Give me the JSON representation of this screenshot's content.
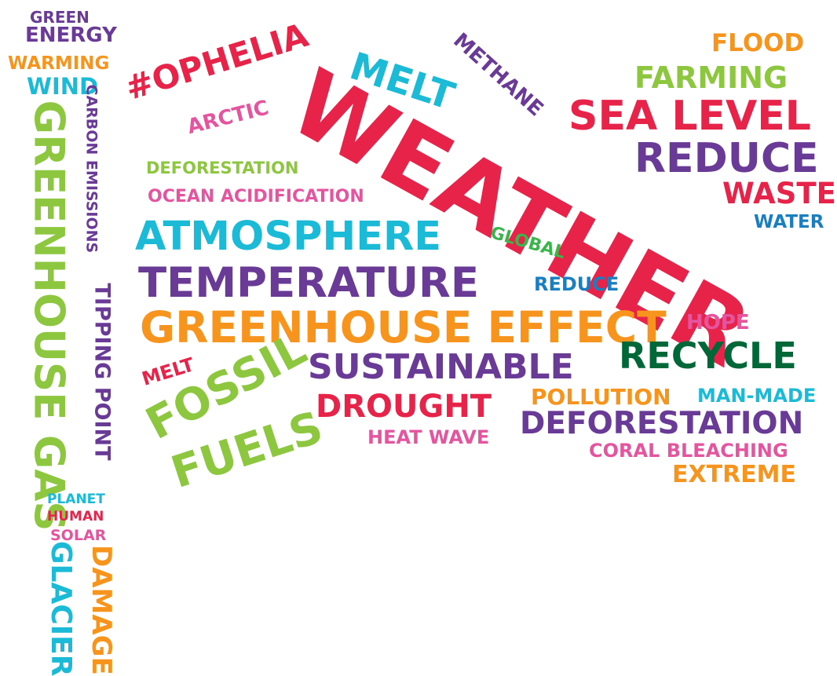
{
  "words": {
    "green": "GREEN",
    "energy": "ENERGY",
    "warming": "WARMING",
    "wind": "WIND",
    "carbon_emissions": "CARBON EMISSIONS",
    "greenhouse_gas": "GREENHOUSE GAS",
    "tipping_point": "TIPPING POINT",
    "planet": "PLANET",
    "human": "HUMAN",
    "solar": "SOLAR",
    "glacier": "GLACIER",
    "damage": "DAMAGE",
    "ophelia": "#OPHELIA",
    "arctic": "ARCTIC",
    "melt_top": "MELT",
    "methane": "METHANE",
    "weather": "WEATHER",
    "flood": "FLOOD",
    "farming": "FARMING",
    "sea_level": "SEA LEVEL",
    "reduce_big": "REDUCE",
    "waste": "WASTE",
    "water": "WATER",
    "deforestation_small": "DEFORESTATION",
    "ocean_acidification": "OCEAN ACIDIFICATION",
    "atmosphere": "ATMOSPHERE",
    "global": "GLOBAL",
    "temperature": "TEMPERATURE",
    "reduce_small": "REDUCE",
    "greenhouse_effect": "GREENHOUSE EFFECT",
    "hope": "HOPE",
    "recycle": "RECYCLE",
    "melt_small": "MELT",
    "fossil": "FOSSIL",
    "fuels": "FUELS",
    "sustainable": "SUSTAINABLE",
    "drought": "DROUGHT",
    "pollution": "POLLUTION",
    "man_made": "MAN-MADE",
    "deforestation_big": "DEFORESTATION",
    "heat_wave": "HEAT WAVE",
    "coral_bleaching": "CORAL BLEACHING",
    "extreme": "EXTREME"
  },
  "colors": {
    "purple": "#6a3a97",
    "orange": "#f7941d",
    "cyan": "#1bbad6",
    "green": "#8dc63f",
    "pink": "#e5559f",
    "red": "#e8234a",
    "blue": "#1a7fc1",
    "dark_green": "#006838",
    "mid_green": "#39b54a"
  }
}
